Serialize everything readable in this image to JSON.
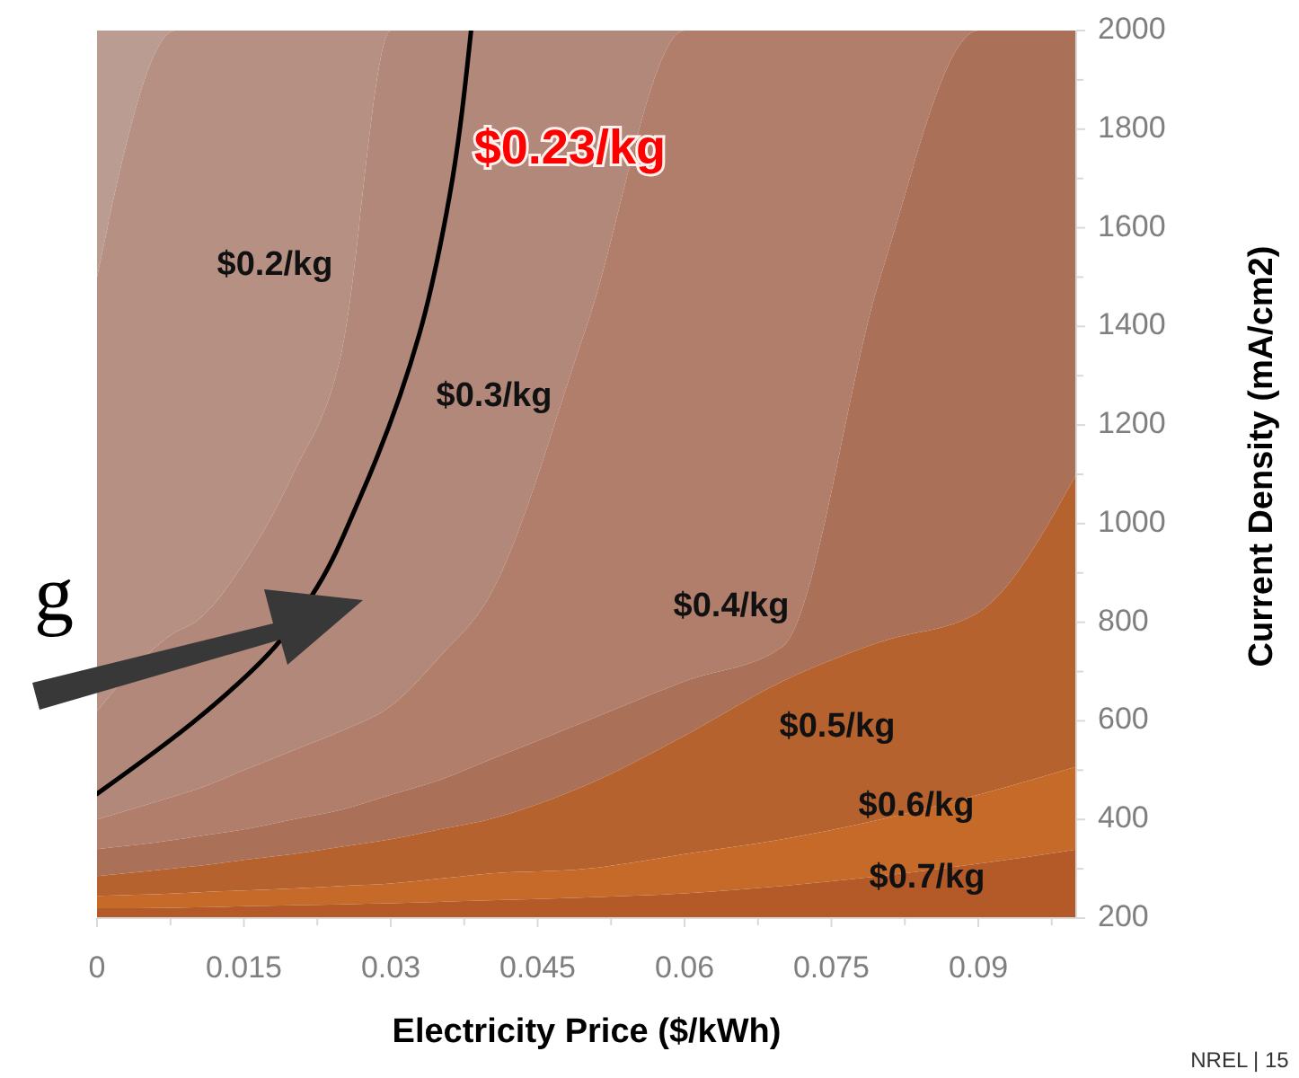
{
  "chart_data": {
    "type": "area",
    "xlabel": "Electricity Price ($/kWh)",
    "ylabel": "Current Density (mA/cm2)",
    "xlim": [
      0,
      0.1
    ],
    "xticks": [
      0,
      0.015,
      0.03,
      0.045,
      0.06,
      0.075,
      0.09
    ],
    "ylim": [
      200,
      2000
    ],
    "yticks": [
      200,
      400,
      600,
      800,
      1000,
      1200,
      1400,
      1600,
      1800,
      2000
    ],
    "x": [
      0,
      0.008,
      0.01,
      0.015,
      0.02,
      0.025,
      0.03,
      0.035,
      0.04,
      0.05,
      0.06,
      0.07,
      0.08,
      0.09,
      0.1
    ],
    "series": [
      {
        "color": "#bb9c92",
        "values": [
          2000,
          2000,
          2000,
          2000,
          2000,
          2000,
          2000,
          2000,
          2000,
          2000,
          2000,
          2000,
          2000,
          2000,
          2000
        ]
      },
      {
        "color": "#b69183",
        "values": [
          1500,
          2000,
          2000,
          2000,
          2000,
          2000,
          2000,
          2000,
          2000,
          2000,
          2000,
          2000,
          2000,
          2000,
          2000
        ]
      },
      {
        "color": "#b2887a",
        "values": [
          620,
          780,
          800,
          920,
          1100,
          1350,
          2000,
          2000,
          2000,
          2000,
          2000,
          2000,
          2000,
          2000,
          2000
        ]
      },
      {
        "color": "#b17e6b",
        "values": [
          400,
          448,
          460,
          500,
          540,
          580,
          630,
          730,
          850,
          1400,
          2000,
          2000,
          2000,
          2000,
          2000
        ]
      },
      {
        "color": "#ab7058",
        "values": [
          340,
          359,
          365,
          380,
          400,
          420,
          450,
          480,
          520,
          600,
          680,
          750,
          1500,
          2000,
          2000
        ]
      },
      {
        "color": "#b5622f",
        "values": [
          285,
          301,
          305,
          318,
          330,
          345,
          360,
          380,
          400,
          470,
          570,
          680,
          760,
          820,
          1100
        ]
      },
      {
        "color": "#c66a2a",
        "values": [
          245,
          250,
          252,
          256,
          260,
          265,
          270,
          280,
          290,
          300,
          330,
          360,
          400,
          450,
          507
        ]
      },
      {
        "color": "#b45a28",
        "values": [
          220,
          221,
          222,
          224,
          226,
          228,
          230,
          233,
          236,
          242,
          250,
          265,
          285,
          310,
          339
        ]
      },
      {
        "type": "line",
        "name": "$0.23/kg",
        "color": "#000000",
        "x": [
          0,
          0.0103,
          0.0182,
          0.0225,
          0.0268,
          0.0329,
          0.036,
          0.0382
        ],
        "values": [
          452,
          605,
          751,
          872,
          1050,
          1383,
          1664,
          2000
        ]
      }
    ],
    "annotations": [
      "$0.2/kg",
      "$0.3/kg",
      "$0.4/kg",
      "$0.5/kg",
      "$0.6/kg",
      "$0.7/kg",
      "g",
      "NREL | 15"
    ]
  }
}
